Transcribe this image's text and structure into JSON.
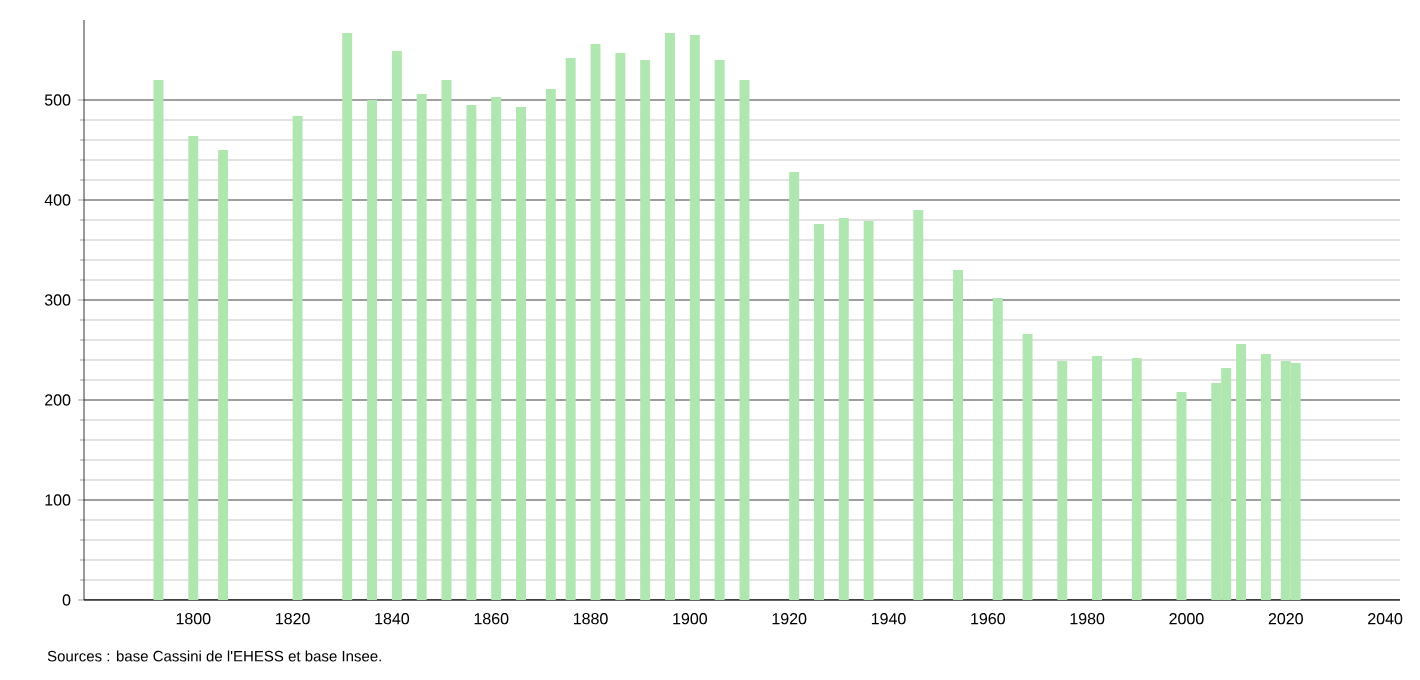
{
  "chart_data": {
    "type": "bar",
    "color": "#b0e6b0",
    "x": [
      1793,
      1800,
      1806,
      1821,
      1831,
      1836,
      1841,
      1846,
      1851,
      1856,
      1861,
      1866,
      1872,
      1876,
      1881,
      1886,
      1891,
      1896,
      1901,
      1906,
      1911,
      1921,
      1926,
      1931,
      1936,
      1946,
      1954,
      1962,
      1968,
      1975,
      1982,
      1990,
      1999,
      2006,
      2008,
      2011,
      2016,
      2020,
      2022
    ],
    "values": [
      520,
      464,
      450,
      484,
      567,
      500,
      549,
      506,
      520,
      495,
      503,
      493,
      511,
      542,
      556,
      547,
      540,
      567,
      565,
      540,
      520,
      428,
      376,
      382,
      379,
      390,
      330,
      302,
      266,
      239,
      244,
      242,
      208,
      217,
      232,
      256,
      246,
      239,
      237
    ],
    "xlim": [
      1778,
      2043
    ],
    "xticks": [
      1800,
      1820,
      1840,
      1860,
      1880,
      1900,
      1920,
      1940,
      1960,
      1980,
      2000,
      2020,
      2040
    ],
    "ylim": [
      0,
      580
    ],
    "yticks": [
      0,
      100,
      200,
      300,
      400,
      500
    ],
    "grid": "y",
    "annotations": [
      "Sources : base Cassini de l'EHESS et base Insee."
    ]
  }
}
